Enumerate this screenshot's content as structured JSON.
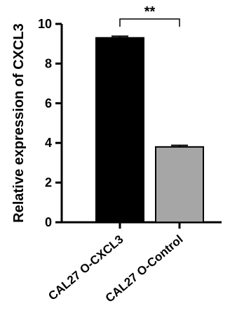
{
  "chart_data": {
    "type": "bar",
    "title": "",
    "xlabel": "",
    "ylabel": "Relative expression of CXCL3",
    "ylim": [
      0,
      10
    ],
    "yticks": [
      0,
      2,
      4,
      6,
      8,
      10
    ],
    "grid": false,
    "legend": "none",
    "categories": [
      "CAL27 O-CXCL3",
      "CAL27 O-Control"
    ],
    "values": [
      9.3,
      3.8
    ],
    "errors": [
      0.08,
      0.08
    ],
    "bar_colors": [
      "#000000",
      "#a6a6a6"
    ],
    "significance": {
      "from": 0,
      "to": 1,
      "label": "**"
    }
  }
}
